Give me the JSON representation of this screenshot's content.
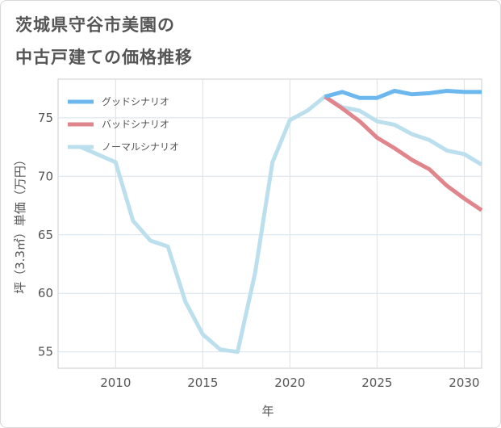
{
  "chart_data": {
    "type": "line",
    "title_lines": [
      "茨城県守谷市美園の",
      "中古戸建ての価格推移"
    ],
    "xlabel": "年",
    "ylabel": "坪（3.3㎡）単価（万円）",
    "xlim": [
      2006.7,
      2031
    ],
    "ylim": [
      53.6,
      78.3
    ],
    "xticks": [
      2010,
      2015,
      2020,
      2025,
      2030
    ],
    "yticks": [
      55,
      60,
      65,
      70,
      75
    ],
    "legend_position": "top-left",
    "series": [
      {
        "name": "グッドシナリオ",
        "color": "#6cb8ee",
        "points": [
          [
            2022,
            76.8
          ],
          [
            2023,
            77.2
          ],
          [
            2024,
            76.7
          ],
          [
            2025,
            76.7
          ],
          [
            2026,
            77.3
          ],
          [
            2027,
            77.0
          ],
          [
            2028,
            77.1
          ],
          [
            2029,
            77.3
          ],
          [
            2030,
            77.2
          ],
          [
            2031,
            77.2
          ]
        ]
      },
      {
        "name": "バッドシナリオ",
        "color": "#e0858c",
        "points": [
          [
            2022,
            76.8
          ],
          [
            2023,
            75.8
          ],
          [
            2024,
            74.7
          ],
          [
            2025,
            73.3
          ],
          [
            2026,
            72.4
          ],
          [
            2027,
            71.4
          ],
          [
            2028,
            70.6
          ],
          [
            2029,
            69.2
          ],
          [
            2030,
            68.1
          ],
          [
            2031,
            67.1
          ]
        ]
      },
      {
        "name": "ノーマルシナリオ",
        "color": "#bcdfee",
        "points": [
          [
            2008,
            72.5
          ],
          [
            2010,
            71.2
          ],
          [
            2011,
            66.2
          ],
          [
            2012,
            64.5
          ],
          [
            2013,
            64.0
          ],
          [
            2014,
            59.3
          ],
          [
            2015,
            56.5
          ],
          [
            2016,
            55.2
          ],
          [
            2017,
            55.0
          ],
          [
            2018,
            61.7
          ],
          [
            2019,
            71.2
          ],
          [
            2020,
            74.8
          ],
          [
            2021,
            75.6
          ],
          [
            2022,
            76.8
          ],
          [
            2023,
            75.9
          ],
          [
            2024,
            75.6
          ],
          [
            2025,
            74.7
          ],
          [
            2026,
            74.4
          ],
          [
            2027,
            73.6
          ],
          [
            2028,
            73.1
          ],
          [
            2029,
            72.2
          ],
          [
            2030,
            71.9
          ],
          [
            2031,
            71.0
          ]
        ]
      }
    ]
  }
}
